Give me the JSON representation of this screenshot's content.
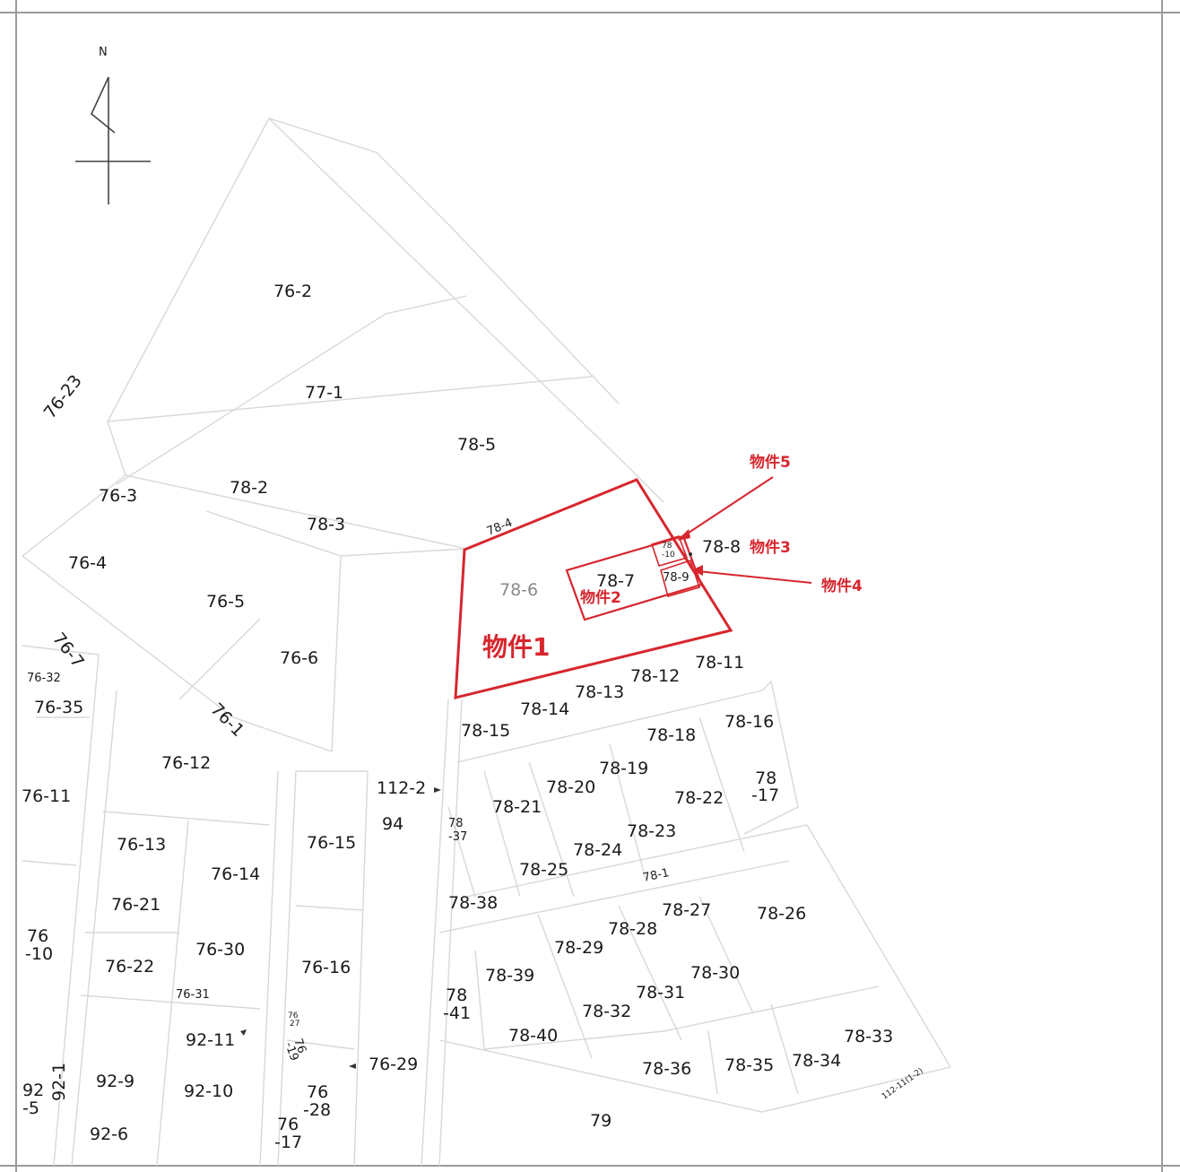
{
  "north_mark": "N",
  "colors": {
    "highlight": "#d7262e",
    "parcel_line": "#d8d8d8",
    "text": "#1a1a1a"
  },
  "properties": {
    "p1": "物件1",
    "p2": "物件2",
    "p3": "物件3",
    "p4": "物件4",
    "p5": "物件5"
  },
  "lots": {
    "l76_2": "76-2",
    "l77_1": "77-1",
    "l76_23": "76-23",
    "l78_5": "78-5",
    "l76_3": "76-3",
    "l78_2": "78-2",
    "l78_3": "78-3",
    "l78_4": "78-4",
    "l76_4": "76-4",
    "l76_5": "76-5",
    "l78_6": "78-6",
    "l78_7": "78-7",
    "l78_8": "78-8",
    "l78_9": "78-9",
    "l78_10a": "78",
    "l78_10b": "-10",
    "l76_7": "76-7",
    "l76_6": "76-6",
    "l76_32": "76-32",
    "l76_35": "76-35",
    "l76_1": "76-1",
    "l78_11": "78-11",
    "l78_12": "78-12",
    "l78_13": "78-13",
    "l78_14": "78-14",
    "l78_15": "78-15",
    "l78_16": "78-16",
    "l78_18": "78-18",
    "l78_19": "78-19",
    "l78_20": "78-20",
    "l78_21": "78-21",
    "l78_22": "78-22",
    "l78_17a": "78",
    "l78_17b": "-17",
    "l76_12": "76-12",
    "l76_11": "76-11",
    "l112_2": "112-2",
    "l94": "94",
    "l78_37a": "78",
    "l78_37b": "-37",
    "l78_23": "78-23",
    "l78_24": "78-24",
    "l78_25": "78-25",
    "l78_1": "78-1",
    "l76_13": "76-13",
    "l76_15": "76-15",
    "l76_14": "76-14",
    "l78_38": "78-38",
    "l78_27": "78-27",
    "l78_26": "78-26",
    "l78_28": "78-28",
    "l78_29": "78-29",
    "l76_21": "76-21",
    "l76_10a": "76",
    "l76_10b": "-10",
    "l76_30": "76-30",
    "l76_22": "76-22",
    "l76_16": "76-16",
    "l76_31": "76-31",
    "l78_39": "78-39",
    "l78_30": "78-30",
    "l78_31": "78-31",
    "l78_41a": "78",
    "l78_41b": "-41",
    "l78_32": "78-32",
    "l76_27a": "76",
    "l76_27b": "27",
    "l92_11": "92-11",
    "l76_19a": "76",
    "l76_19b": "-19",
    "l78_40": "78-40",
    "l78_33": "78-33",
    "l76_29": "76-29",
    "l78_36": "78-36",
    "l78_35": "78-35",
    "l78_34": "78-34",
    "l92_9": "92-9",
    "l92_10": "92-10",
    "l92_5a": "92",
    "l92_5b": "-5",
    "l92_1": "92-1",
    "l76_28a": "76",
    "l76_28b": "-28",
    "l76_17a": "76",
    "l76_17b": "-17",
    "l79": "79",
    "l92_6": "92-6",
    "l112_11_2": "112-11(1-2)"
  }
}
